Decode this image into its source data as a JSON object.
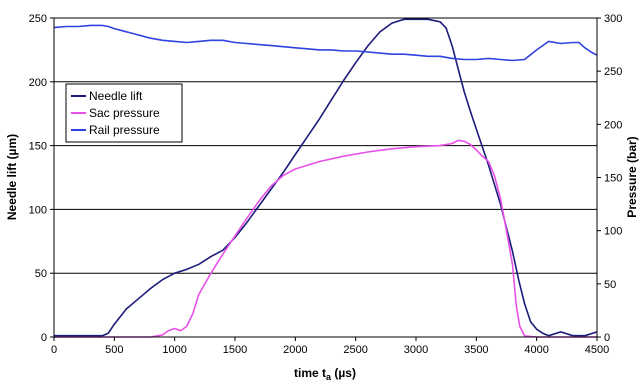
{
  "chart_data": {
    "type": "line",
    "title": "",
    "xlabel_main": "time t",
    "xlabel_sub": "a",
    "xlabel_unit": " (µs)",
    "ylabel_left": "Needle lift (µm)",
    "ylabel_right": "Pressure (bar)",
    "xlim": [
      0,
      4500
    ],
    "ylim_left": [
      0,
      250
    ],
    "ylim_right": [
      0,
      300
    ],
    "x_ticks": [
      "0",
      "500",
      "1000",
      "1500",
      "2000",
      "2500",
      "3000",
      "3500",
      "4000",
      "4500"
    ],
    "y_left_ticks": [
      "0",
      "50",
      "100",
      "150",
      "200",
      "250"
    ],
    "y_right_ticks": [
      "0",
      "50",
      "100",
      "150",
      "200",
      "250",
      "300"
    ],
    "gridlines": "horizontal (left axis)",
    "legend_position": "upper-left",
    "series": [
      {
        "name": "Needle lift",
        "axis": "left",
        "color": "#1c1c7a",
        "points": [
          [
            0,
            1
          ],
          [
            200,
            1
          ],
          [
            400,
            1
          ],
          [
            450,
            3
          ],
          [
            500,
            10
          ],
          [
            600,
            22
          ],
          [
            700,
            30
          ],
          [
            800,
            38
          ],
          [
            900,
            45
          ],
          [
            1000,
            50
          ],
          [
            1100,
            53
          ],
          [
            1200,
            57
          ],
          [
            1300,
            63
          ],
          [
            1400,
            68
          ],
          [
            1500,
            78
          ],
          [
            1600,
            90
          ],
          [
            1700,
            103
          ],
          [
            1800,
            116
          ],
          [
            1900,
            129
          ],
          [
            2000,
            143
          ],
          [
            2100,
            157
          ],
          [
            2200,
            171
          ],
          [
            2300,
            186
          ],
          [
            2400,
            201
          ],
          [
            2500,
            215
          ],
          [
            2600,
            228
          ],
          [
            2700,
            239
          ],
          [
            2800,
            246
          ],
          [
            2900,
            249
          ],
          [
            3000,
            249
          ],
          [
            3100,
            249
          ],
          [
            3200,
            247
          ],
          [
            3250,
            242
          ],
          [
            3300,
            228
          ],
          [
            3350,
            210
          ],
          [
            3400,
            192
          ],
          [
            3450,
            177
          ],
          [
            3500,
            163
          ],
          [
            3600,
            135
          ],
          [
            3700,
            104
          ],
          [
            3800,
            67
          ],
          [
            3850,
            45
          ],
          [
            3900,
            26
          ],
          [
            3950,
            12
          ],
          [
            4000,
            6
          ],
          [
            4050,
            3
          ],
          [
            4100,
            1
          ],
          [
            4200,
            4
          ],
          [
            4300,
            1
          ],
          [
            4400,
            1
          ],
          [
            4500,
            4
          ]
        ]
      },
      {
        "name": "Sac pressure",
        "axis": "right",
        "color": "#e851e8",
        "points": [
          [
            0,
            0
          ],
          [
            800,
            0
          ],
          [
            900,
            2
          ],
          [
            950,
            6
          ],
          [
            1000,
            8
          ],
          [
            1050,
            6
          ],
          [
            1100,
            10
          ],
          [
            1150,
            22
          ],
          [
            1200,
            40
          ],
          [
            1300,
            60
          ],
          [
            1400,
            78
          ],
          [
            1500,
            95
          ],
          [
            1600,
            112
          ],
          [
            1700,
            128
          ],
          [
            1800,
            142
          ],
          [
            1900,
            152
          ],
          [
            2000,
            158
          ],
          [
            2200,
            165
          ],
          [
            2400,
            170
          ],
          [
            2600,
            174
          ],
          [
            2800,
            177
          ],
          [
            3000,
            179
          ],
          [
            3200,
            180
          ],
          [
            3300,
            182
          ],
          [
            3350,
            185
          ],
          [
            3400,
            184
          ],
          [
            3450,
            181
          ],
          [
            3500,
            176
          ],
          [
            3550,
            170
          ],
          [
            3600,
            165
          ],
          [
            3650,
            152
          ],
          [
            3700,
            130
          ],
          [
            3750,
            100
          ],
          [
            3800,
            68
          ],
          [
            3830,
            30
          ],
          [
            3860,
            10
          ],
          [
            3900,
            1
          ],
          [
            4000,
            0
          ],
          [
            4500,
            0
          ]
        ]
      },
      {
        "name": "Rail pressure",
        "axis": "right",
        "color": "#2e43e0",
        "points": [
          [
            0,
            291
          ],
          [
            100,
            292
          ],
          [
            200,
            292
          ],
          [
            300,
            293
          ],
          [
            400,
            293
          ],
          [
            450,
            292
          ],
          [
            500,
            290
          ],
          [
            600,
            287
          ],
          [
            700,
            284
          ],
          [
            800,
            281
          ],
          [
            900,
            279
          ],
          [
            1000,
            278
          ],
          [
            1100,
            277
          ],
          [
            1200,
            278
          ],
          [
            1300,
            279
          ],
          [
            1400,
            279
          ],
          [
            1500,
            277
          ],
          [
            1600,
            276
          ],
          [
            1700,
            275
          ],
          [
            1800,
            274
          ],
          [
            1900,
            273
          ],
          [
            2000,
            272
          ],
          [
            2100,
            271
          ],
          [
            2200,
            270
          ],
          [
            2300,
            270
          ],
          [
            2400,
            269
          ],
          [
            2500,
            269
          ],
          [
            2600,
            268
          ],
          [
            2700,
            267
          ],
          [
            2800,
            266
          ],
          [
            2900,
            266
          ],
          [
            3000,
            265
          ],
          [
            3100,
            264
          ],
          [
            3200,
            264
          ],
          [
            3300,
            262
          ],
          [
            3400,
            261
          ],
          [
            3500,
            261
          ],
          [
            3600,
            262
          ],
          [
            3700,
            261
          ],
          [
            3800,
            260
          ],
          [
            3900,
            261
          ],
          [
            4000,
            270
          ],
          [
            4100,
            278
          ],
          [
            4200,
            276
          ],
          [
            4300,
            277
          ],
          [
            4350,
            277
          ],
          [
            4400,
            272
          ],
          [
            4450,
            268
          ],
          [
            4500,
            265
          ]
        ]
      }
    ]
  }
}
